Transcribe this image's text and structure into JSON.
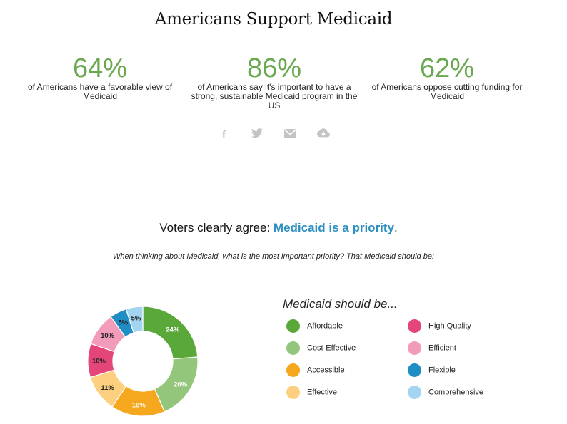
{
  "title": "Americans Support Medicaid",
  "stats": [
    {
      "value": "64%",
      "text": "of Americans have a favorable view of Medicaid"
    },
    {
      "value": "86%",
      "text": "of Americans say it's important to have a strong, sustainable Medicaid program in the US"
    },
    {
      "value": "62%",
      "text": "of Americans oppose cutting funding for Medicaid"
    }
  ],
  "social_icons": [
    "facebook-icon",
    "twitter-icon",
    "email-icon",
    "cloud-download-icon"
  ],
  "subtitle": {
    "prefix": "Voters clearly agree: ",
    "highlight": "Medicaid is a priority",
    "suffix": "."
  },
  "question": "When thinking about Medicaid, what is the most important priority? That Medicaid should be:",
  "legend_title": "Medicaid should be...",
  "chart_data": {
    "type": "pie",
    "donut": true,
    "categories": [
      "Affordable",
      "Cost-Effective",
      "Accessible",
      "Effective",
      "High Quality",
      "Efficient",
      "Flexible",
      "Comprehensive"
    ],
    "values": [
      24,
      20,
      16,
      11,
      10,
      10,
      5,
      5
    ],
    "data_labels": [
      "24%",
      "20%",
      "16%",
      "11%",
      "10%",
      "10%",
      "5%",
      "5%"
    ],
    "colors": [
      "#5aa83a",
      "#93c57b",
      "#f5a81e",
      "#fcd07f",
      "#e5467a",
      "#f29bbb",
      "#1f8ec4",
      "#a3d4f0"
    ],
    "legend_position": "right"
  }
}
